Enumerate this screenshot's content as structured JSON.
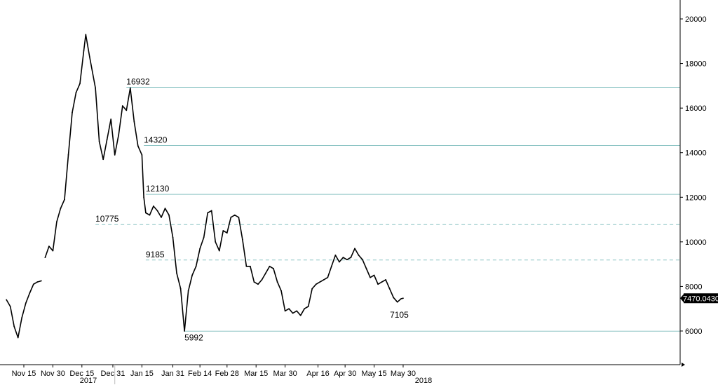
{
  "chart_data": {
    "type": "line",
    "title": "",
    "xlabel": "",
    "ylabel": "",
    "ylim": [
      4800,
      21000
    ],
    "y_ticks": [
      "6000",
      "8000",
      "10000",
      "12000",
      "14000",
      "16000",
      "18000",
      "20000"
    ],
    "x_ticks": [
      "Nov 15",
      "Nov 30",
      "Dec 15",
      "Dec 31",
      "Jan 15",
      "Jan 31",
      "Feb 14",
      "Feb 28",
      "Mar 15",
      "Mar 30",
      "Apr 16",
      "Apr 30",
      "May 15",
      "May 30"
    ],
    "year_labels": [
      "2017",
      "2018"
    ],
    "series": [
      {
        "color": "#000000",
        "x": [
          "2017-11-06",
          "2017-11-08",
          "2017-11-10",
          "2017-11-12",
          "2017-11-14",
          "2017-11-16",
          "2017-11-18",
          "2017-11-20",
          "2017-11-22",
          "2017-11-24",
          "2017-11-26",
          "2017-11-28",
          "2017-11-30",
          "2017-12-02",
          "2017-12-04",
          "2017-12-06",
          "2017-12-08",
          "2017-12-10",
          "2017-12-12",
          "2017-12-14",
          "2017-12-16",
          "2017-12-17",
          "2017-12-19",
          "2017-12-22",
          "2017-12-24",
          "2017-12-26",
          "2017-12-28",
          "2017-12-30",
          "2018-01-01",
          "2018-01-03",
          "2018-01-05",
          "2018-01-07",
          "2018-01-09",
          "2018-01-11",
          "2018-01-13",
          "2018-01-15",
          "2018-01-16",
          "2018-01-17",
          "2018-01-19",
          "2018-01-21",
          "2018-01-23",
          "2018-01-25",
          "2018-01-27",
          "2018-01-29",
          "2018-01-31",
          "2018-02-02",
          "2018-02-04",
          "2018-02-06",
          "2018-02-08",
          "2018-02-10",
          "2018-02-12",
          "2018-02-14",
          "2018-02-16",
          "2018-02-18",
          "2018-02-20",
          "2018-02-22",
          "2018-02-24",
          "2018-02-26",
          "2018-02-28",
          "2018-03-02",
          "2018-03-04",
          "2018-03-06",
          "2018-03-08",
          "2018-03-10",
          "2018-03-12",
          "2018-03-14",
          "2018-03-16",
          "2018-03-18",
          "2018-03-20",
          "2018-03-22",
          "2018-03-24",
          "2018-03-26",
          "2018-03-28",
          "2018-03-30",
          "2018-04-01",
          "2018-04-03",
          "2018-04-05",
          "2018-04-07",
          "2018-04-09",
          "2018-04-11",
          "2018-04-13",
          "2018-04-15",
          "2018-04-17",
          "2018-04-19",
          "2018-04-21",
          "2018-04-23",
          "2018-04-25",
          "2018-04-27",
          "2018-04-29",
          "2018-05-01",
          "2018-05-03",
          "2018-05-05",
          "2018-05-07",
          "2018-05-09",
          "2018-05-11",
          "2018-05-13",
          "2018-05-15",
          "2018-05-17",
          "2018-05-19",
          "2018-05-21",
          "2018-05-23",
          "2018-05-25",
          "2018-05-27",
          "2018-05-29",
          "2018-05-30"
        ],
        "y": [
          7400,
          7100,
          6200,
          5700,
          6600,
          7250,
          7700,
          8100,
          8200,
          8250,
          9300,
          9800,
          9600,
          10900,
          11500,
          11900,
          13900,
          15800,
          16700,
          17100,
          18600,
          19300,
          18300,
          16900,
          14500,
          13700,
          14600,
          15500,
          13900,
          14800,
          16100,
          15900,
          16900,
          15400,
          14300,
          13900,
          12000,
          11300,
          11200,
          11600,
          11400,
          11100,
          11500,
          11200,
          10200,
          8600,
          7900,
          6000,
          7800,
          8500,
          8900,
          9700,
          10200,
          11300,
          11400,
          10000,
          9600,
          10500,
          10400,
          11100,
          11200,
          11100,
          10100,
          8900,
          8900,
          8200,
          8100,
          8300,
          8600,
          8900,
          8800,
          8200,
          7800,
          6900,
          7000,
          6800,
          6900,
          6700,
          7000,
          7100,
          7900,
          8100,
          8200,
          8300,
          8400,
          8900,
          9400,
          9100,
          9300,
          9200,
          9300,
          9700,
          9400,
          9200,
          8800,
          8400,
          8500,
          8100,
          8200,
          8300,
          7900,
          7500,
          7300,
          7450,
          7470
        ]
      }
    ],
    "levels": [
      {
        "value": 16932,
        "label": "16932",
        "date": "2018-01-07",
        "style": "solid"
      },
      {
        "value": 14320,
        "label": "14320",
        "date": "2018-01-16",
        "style": "solid"
      },
      {
        "value": 12130,
        "label": "12130",
        "date": "2018-01-17",
        "style": "solid"
      },
      {
        "value": 10775,
        "label": "10775",
        "date": "2017-12-22",
        "style": "dashed"
      },
      {
        "value": 9185,
        "label": "9185",
        "date": "2018-01-17",
        "style": "dashed"
      },
      {
        "value": 5992,
        "label": "5992",
        "date": "2018-02-06",
        "style": "solid"
      }
    ],
    "annotations": [
      {
        "label": "7105",
        "value": 7105,
        "date": "2018-05-28"
      }
    ],
    "last_value": "7470.0430",
    "grid": false,
    "legend": "none",
    "colors": {
      "line": "#000000",
      "level_line": "#8cc4c4",
      "last_value_box": "#000000"
    }
  }
}
